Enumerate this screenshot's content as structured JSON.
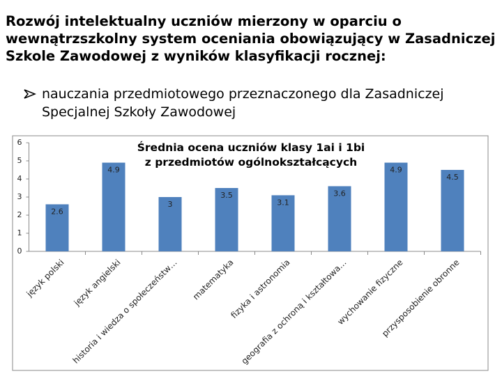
{
  "header": {
    "title": "Rozwój intelektualny uczniów mierzony w oparciu o wewnątrzszkolny system oceniania obowiązujący w Zasadniczej Szkole Zawodowej z wyników klasyfikacji rocznej:",
    "bullet": "nauczania przedmiotowego przeznaczonego dla Zasadniczej Specjalnej Szkoły Zawodowej"
  },
  "chart_data": {
    "type": "bar",
    "title": "Średnia ocena uczniów klasy 1ai i 1bi z przedmiotów ogólnokształcących",
    "categories": [
      "język polski",
      "język angielski",
      "historia i wiedza o społeczeństw…",
      "matematyka",
      "fizyka i astronomia",
      "geografia z ochroną i kształtowa…",
      "wychowanie fizyczne",
      "przysposobienie obronne"
    ],
    "values": [
      2.6,
      4.9,
      3,
      3.5,
      3.1,
      3.6,
      4.9,
      4.5
    ],
    "color": "#4f81bd",
    "ylim": [
      0,
      6
    ],
    "yticks": [
      0,
      1,
      2,
      3,
      4,
      5,
      6
    ],
    "grid": false
  }
}
